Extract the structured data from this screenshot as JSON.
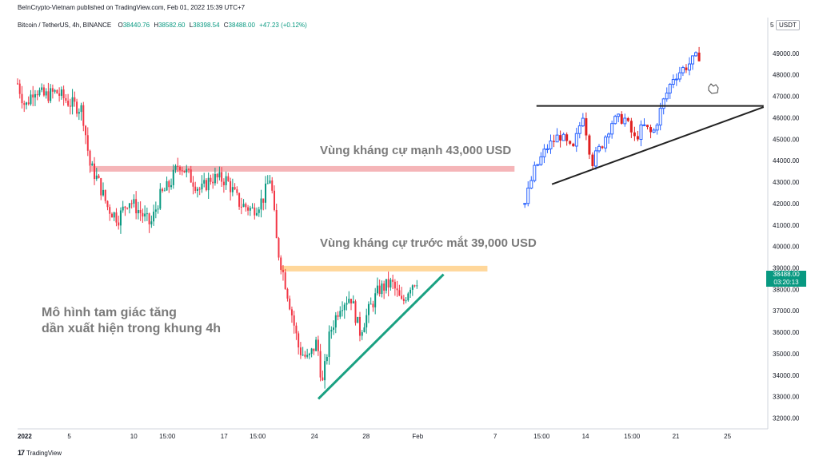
{
  "header": {
    "publisher": "BeInCrypto-Vietnam published on TradingView.com, Feb 01, 2022 15:39 UTC+7"
  },
  "legend": {
    "symbol": "Bitcoin / TetherUS, 4h, BINANCE",
    "open_label": "O",
    "open": "38440.76",
    "high_label": "H",
    "high": "38582.60",
    "low_label": "L",
    "low": "38398.54",
    "close_label": "C",
    "close": "38488.00",
    "change": "+47.23 (+0.12%)"
  },
  "currency_box": "USDT",
  "currency_prefix": "5",
  "last_price": {
    "price": "38488.00",
    "countdown": "03:20:13"
  },
  "annotations": {
    "resistance_strong": "Vùng kháng cự mạnh 43,000 USD",
    "resistance_near": "Vùng kháng cự trước mắt 39,000 USD",
    "pattern_line1": "Mô hình tam giác tăng",
    "pattern_line2": "dần xuất hiện trong khung 4h"
  },
  "footer": {
    "logo": "17",
    "brand": "TradingView"
  },
  "colors": {
    "up": "#089981",
    "down": "#f23645",
    "resistance_strong": "#f5b5b8",
    "resistance_near": "#ffd79a",
    "trendline": "#1aa182",
    "inset_up": "#2962ff",
    "inset_down": "#e02020"
  },
  "chart_data": {
    "type": "candlestick",
    "y_ticks": [
      32000,
      33000,
      34000,
      35000,
      36000,
      37000,
      38000,
      39000,
      40000,
      41000,
      42000,
      43000,
      44000,
      45000,
      46000,
      47000,
      48000,
      49000
    ],
    "y_tick_labels": [
      "32000.00",
      "33000.00",
      "34000.00",
      "35000.00",
      "36000.00",
      "37000.00",
      "38000.00",
      "39000.00",
      "40000.00",
      "41000.00",
      "42000.00",
      "43000.00",
      "44000.00",
      "45000.00",
      "46000.00",
      "47000.00",
      "48000.00",
      "49000.00"
    ],
    "ylim": [
      31500,
      50000
    ],
    "x_ticks": [
      {
        "label": "2022",
        "day": 1
      },
      {
        "label": "5",
        "day": 5
      },
      {
        "label": "10",
        "day": 10
      },
      {
        "label": "15:00",
        "day": 12.6
      },
      {
        "label": "17",
        "day": 17
      },
      {
        "label": "15:00",
        "day": 19.6
      },
      {
        "label": "24",
        "day": 24
      },
      {
        "label": "28",
        "day": 28
      },
      {
        "label": "Feb",
        "day": 32
      },
      {
        "label": "7",
        "day": 38
      },
      {
        "label": "15:00",
        "day": 41.6
      },
      {
        "label": "14",
        "day": 45
      },
      {
        "label": "15:00",
        "day": 48.6
      },
      {
        "label": "21",
        "day": 52
      },
      {
        "label": "25",
        "day": 56
      }
    ],
    "xlim": [
      1,
      59
    ],
    "main_path": [
      {
        "day": 1.0,
        "price": 47600
      },
      {
        "day": 1.6,
        "price": 46500
      },
      {
        "day": 2.3,
        "price": 47400
      },
      {
        "day": 3.0,
        "price": 47000
      },
      {
        "day": 4.0,
        "price": 47200
      },
      {
        "day": 5.0,
        "price": 46700
      },
      {
        "day": 6.0,
        "price": 46400
      },
      {
        "day": 6.6,
        "price": 43800
      },
      {
        "day": 7.2,
        "price": 43100
      },
      {
        "day": 8.0,
        "price": 41800
      },
      {
        "day": 8.8,
        "price": 41300
      },
      {
        "day": 9.6,
        "price": 42200
      },
      {
        "day": 10.5,
        "price": 41600
      },
      {
        "day": 11.3,
        "price": 41000
      },
      {
        "day": 12.0,
        "price": 42300
      },
      {
        "day": 12.8,
        "price": 42900
      },
      {
        "day": 13.5,
        "price": 43900
      },
      {
        "day": 14.4,
        "price": 43200
      },
      {
        "day": 15.2,
        "price": 42600
      },
      {
        "day": 16.0,
        "price": 43200
      },
      {
        "day": 17.2,
        "price": 43100
      },
      {
        "day": 18.2,
        "price": 42000
      },
      {
        "day": 19.2,
        "price": 41700
      },
      {
        "day": 20.0,
        "price": 42200
      },
      {
        "day": 20.6,
        "price": 43300
      },
      {
        "day": 21.1,
        "price": 40000
      },
      {
        "day": 21.6,
        "price": 38700
      },
      {
        "day": 22.2,
        "price": 37000
      },
      {
        "day": 22.8,
        "price": 35200
      },
      {
        "day": 23.5,
        "price": 34700
      },
      {
        "day": 24.2,
        "price": 35600
      },
      {
        "day": 24.6,
        "price": 33500
      },
      {
        "day": 25.2,
        "price": 36000
      },
      {
        "day": 26.0,
        "price": 37300
      },
      {
        "day": 26.8,
        "price": 37700
      },
      {
        "day": 27.5,
        "price": 36000
      },
      {
        "day": 28.2,
        "price": 37000
      },
      {
        "day": 29.0,
        "price": 38000
      },
      {
        "day": 30.0,
        "price": 38300
      },
      {
        "day": 30.8,
        "price": 37300
      },
      {
        "day": 31.4,
        "price": 38200
      },
      {
        "day": 32.0,
        "price": 38500
      }
    ],
    "inset_path": [
      {
        "day": 40.3,
        "price": 42000
      },
      {
        "day": 41.0,
        "price": 43500
      },
      {
        "day": 42.0,
        "price": 44600
      },
      {
        "day": 43.0,
        "price": 45200
      },
      {
        "day": 44.0,
        "price": 44400
      },
      {
        "day": 44.8,
        "price": 46200
      },
      {
        "day": 45.5,
        "price": 43900
      },
      {
        "day": 46.3,
        "price": 44800
      },
      {
        "day": 47.0,
        "price": 45800
      },
      {
        "day": 48.0,
        "price": 46000
      },
      {
        "day": 48.8,
        "price": 45000
      },
      {
        "day": 49.5,
        "price": 45600
      },
      {
        "day": 50.2,
        "price": 45200
      },
      {
        "day": 51.0,
        "price": 46700
      },
      {
        "day": 51.8,
        "price": 47900
      },
      {
        "day": 52.8,
        "price": 48400
      },
      {
        "day": 53.8,
        "price": 48900
      }
    ],
    "resistance_strong": {
      "price": 43600,
      "from_day": 6.6,
      "to_day": 39.5
    },
    "resistance_near": {
      "price": 38950,
      "from_day": 21.4,
      "to_day": 37.4
    },
    "trendline": {
      "from": {
        "day": 24.3,
        "price": 32900
      },
      "to": {
        "day": 34.0,
        "price": 38700
      }
    },
    "inset_resistance": {
      "price": 46550,
      "from_day": 41.2,
      "to_day": 58.8
    },
    "inset_trendline": {
      "from": {
        "day": 42.4,
        "price": 42900
      },
      "to": {
        "day": 58.8,
        "price": 46500
      }
    }
  }
}
